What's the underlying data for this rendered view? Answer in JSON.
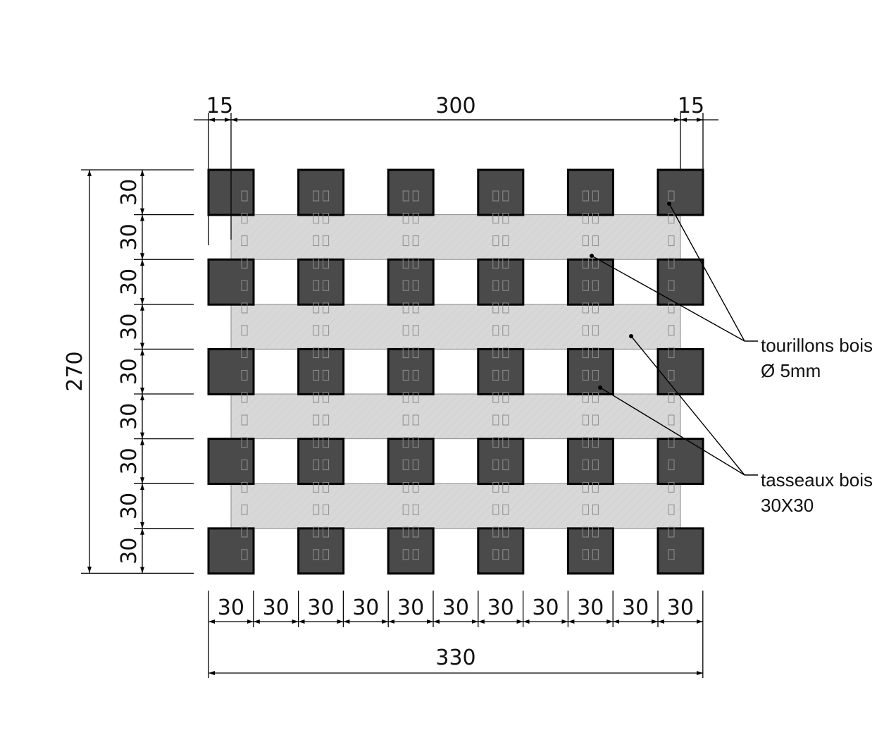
{
  "drawing": {
    "colors": {
      "block": "#4a4a4a",
      "block_stroke": "#000000",
      "strip": "#d8d8d8",
      "strip_stroke": "#888888",
      "dowel": "#8e8e8e",
      "line": "#000000"
    },
    "blocks": {
      "columns": 6,
      "rows": 5
    },
    "strips": {
      "count": 4
    },
    "top_dimensions": {
      "left": "15",
      "middle": "300",
      "right": "15"
    },
    "left_dimensions": {
      "total": "270",
      "segments": [
        "30",
        "30",
        "30",
        "30",
        "30",
        "30",
        "30",
        "30",
        "30"
      ]
    },
    "bottom_dimensions": {
      "segments": [
        "30",
        "30",
        "30",
        "30",
        "30",
        "30",
        "30",
        "30",
        "30",
        "30",
        "30"
      ],
      "total": "330"
    },
    "callouts": {
      "dowels_line1": "tourillons bois",
      "dowels_line2": "Ø 5mm",
      "battens_line1": "tasseaux bois",
      "battens_line2": "30X30"
    }
  }
}
